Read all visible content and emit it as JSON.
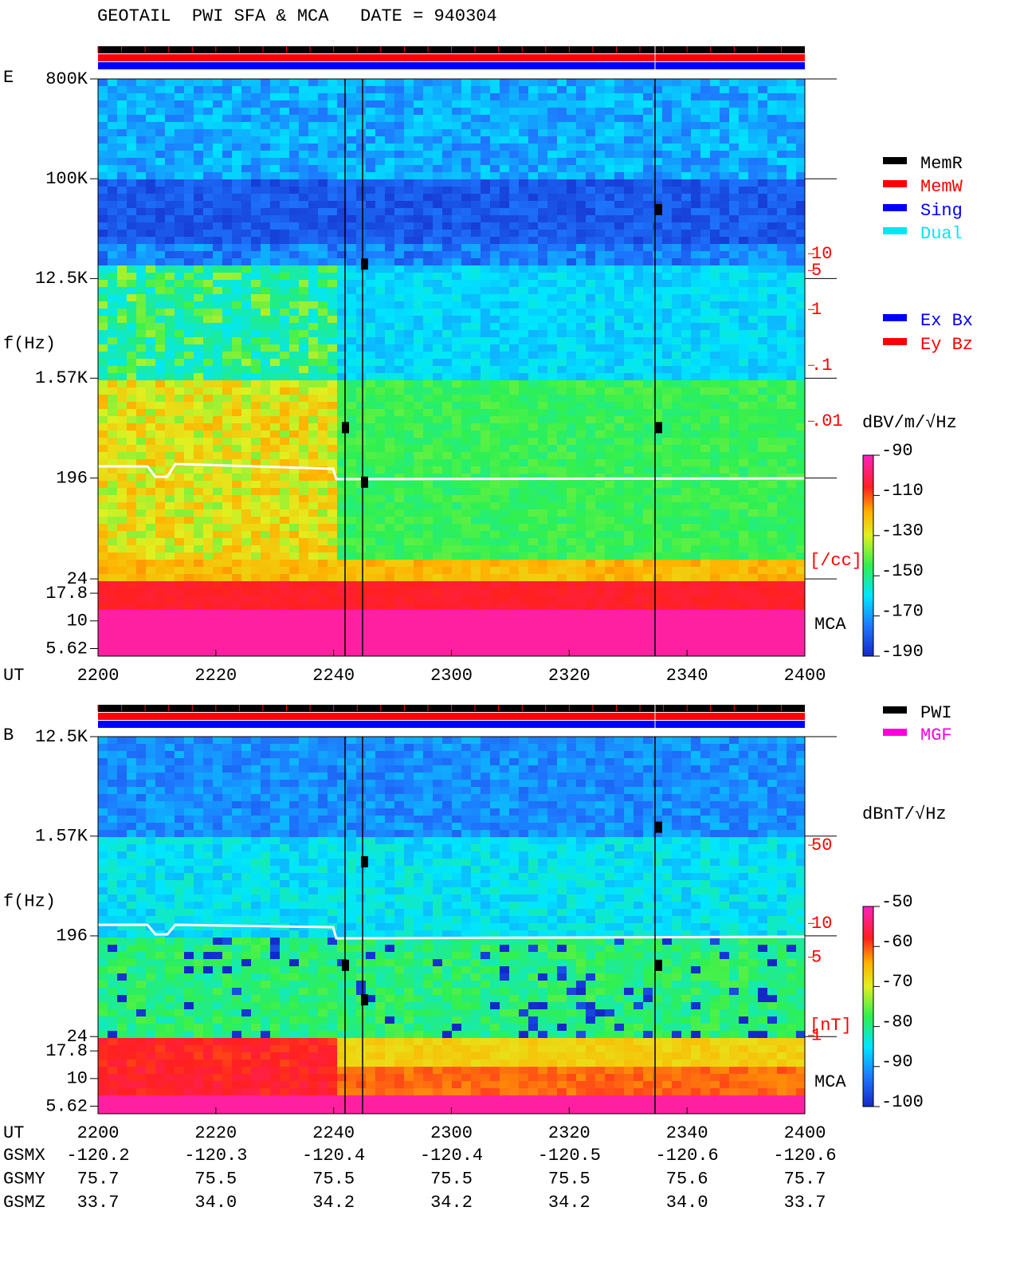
{
  "chart_data": [
    {
      "type": "spectrogram",
      "title": "GEOTAIL  PWI SFA & MCA   DATE = 940304",
      "panel": "E",
      "ylabel": "f(Hz)",
      "xlabel": "UT",
      "yscale": "log",
      "ylim": [
        4.8,
        800000
      ],
      "yticks": [
        {
          "value": 800000,
          "label": "800K"
        },
        {
          "value": 100000,
          "label": "100K"
        },
        {
          "value": 12500,
          "label": "12.5K"
        },
        {
          "value": 1570,
          "label": "1.57K"
        },
        196,
        24,
        17.8,
        10,
        5.62
      ],
      "xticks": [
        "2200",
        "2220",
        "2240",
        "2300",
        "2320",
        "2340",
        "2400"
      ],
      "region_label": "MCA",
      "y2scale": "log",
      "y2lim": [
        6.2e-07,
        13500
      ],
      "y2ticks": [
        10,
        5,
        1,
        {
          "value": 0.1,
          "label": ".1"
        },
        {
          "value": 0.01,
          "label": ".01"
        }
      ],
      "y2label": "[/cc]",
      "colorbar": {
        "label": "dBV/m/√Hz",
        "lim": [
          -190,
          -90
        ],
        "ticks": [
          -90,
          -110,
          -130,
          -150,
          -170,
          -190
        ]
      },
      "legend": [
        {
          "name": "MemR",
          "color": "#000000"
        },
        {
          "name": "MemW",
          "color": "#ff0000"
        },
        {
          "name": "Sing",
          "color": "#0000ff"
        },
        {
          "name": "Dual",
          "color": "#00e8f0"
        }
      ],
      "legend2": [
        {
          "name": "Ex Bx",
          "color": "#0000ff"
        },
        {
          "name": "Ey Bz",
          "color": "#ff0000"
        }
      ]
    },
    {
      "type": "spectrogram",
      "panel": "B",
      "ylabel": "f(Hz)",
      "xlabel": "UT",
      "yscale": "log",
      "ylim": [
        4.8,
        12500
      ],
      "yticks": [
        {
          "value": 12500,
          "label": "12.5K"
        },
        {
          "value": 1570,
          "label": "1.57K"
        },
        196,
        24,
        17.8,
        10,
        5.62
      ],
      "xticks": [
        "2200",
        "2220",
        "2240",
        "2300",
        "2320",
        "2340",
        "2400"
      ],
      "region_label": "MCA",
      "y2scale": "log",
      "y2lim": [
        0.2,
        465
      ],
      "y2ticks": [
        50,
        10,
        5,
        1
      ],
      "y2label": "[nT]",
      "colorbar": {
        "label": "dBnT/√Hz",
        "lim": [
          -100,
          -50
        ],
        "ticks": [
          -50,
          -60,
          -70,
          -80,
          -90,
          -100
        ]
      },
      "legend": [
        {
          "name": "PWI",
          "color": "#000000"
        },
        {
          "name": "MGF",
          "color": "#ff00dd"
        }
      ],
      "orbit": {
        "labels": [
          "GSMX",
          "GSMY",
          "GSMZ"
        ],
        "rows": [
          [
            "-120.2",
            "-120.3",
            "-120.4",
            "-120.4",
            "-120.5",
            "-120.6",
            "-120.6"
          ],
          [
            "75.7",
            "75.5",
            "75.5",
            "75.5",
            "75.5",
            "75.6",
            "75.7"
          ],
          [
            "33.7",
            "34.0",
            "34.2",
            "34.2",
            "34.2",
            "34.0",
            "33.7"
          ]
        ]
      }
    }
  ]
}
